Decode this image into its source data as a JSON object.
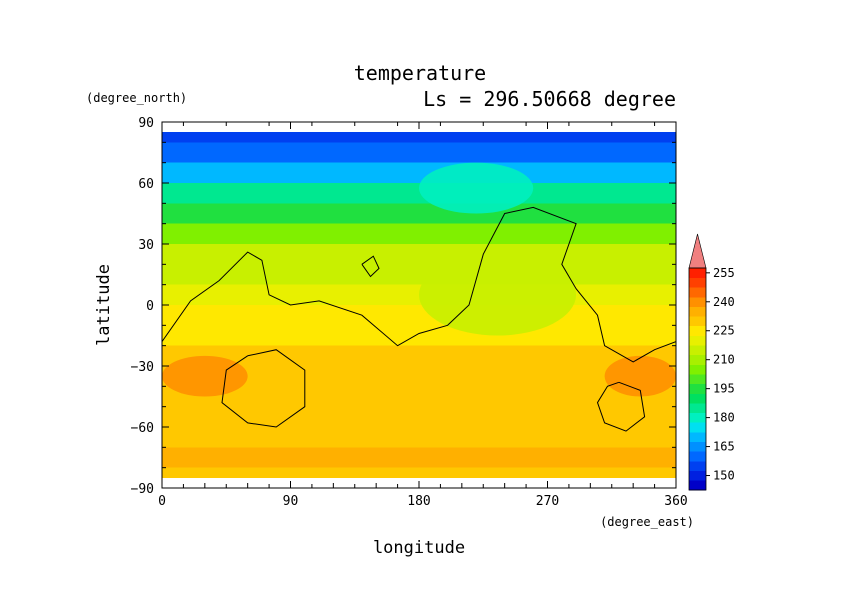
{
  "chart_data": {
    "type": "heatmap",
    "title": "temperature",
    "subtitle": "Ls = 296.50668 degree",
    "xlabel": "longitude",
    "ylabel": "latitude",
    "x_unit": "(degree_east)",
    "y_unit": "(degree_north)",
    "xlim": [
      0,
      360
    ],
    "ylim": [
      -90,
      90
    ],
    "x_ticks": [
      "0",
      "90",
      "180",
      "270",
      "360"
    ],
    "x_tick_values": [
      0,
      90,
      180,
      270,
      360
    ],
    "y_ticks": [
      "90",
      "60",
      "30",
      "0",
      "−30",
      "−60",
      "−90"
    ],
    "y_tick_values": [
      90,
      60,
      30,
      0,
      -30,
      -60,
      -90
    ],
    "colorbar": {
      "levels": [
        140,
        145,
        150,
        155,
        160,
        165,
        170,
        175,
        180,
        185,
        190,
        195,
        200,
        205,
        210,
        215,
        220,
        225,
        230,
        235,
        240,
        245,
        250,
        255,
        260
      ],
      "labels": [
        "150",
        "165",
        "180",
        "195",
        "210",
        "225",
        "240",
        "255"
      ],
      "label_values": [
        150,
        165,
        180,
        195,
        210,
        225,
        240,
        255
      ],
      "colors": [
        "#0000c8",
        "#0020e0",
        "#0040f0",
        "#0068ff",
        "#0090ff",
        "#00b8ff",
        "#00e0f0",
        "#00f0c0",
        "#00e890",
        "#00e060",
        "#20e040",
        "#50e820",
        "#80f000",
        "#a8f000",
        "#c8f000",
        "#e8f000",
        "#ffe800",
        "#ffc800",
        "#ffb000",
        "#ff9000",
        "#ff6800",
        "#ff4000",
        "#ff2000",
        "#f08080"
      ]
    },
    "field_by_latitude": [
      {
        "lat": 85,
        "temp": 150
      },
      {
        "lat": 75,
        "temp": 156
      },
      {
        "lat": 65,
        "temp": 168
      },
      {
        "lat": 55,
        "temp": 180
      },
      {
        "lat": 45,
        "temp": 192
      },
      {
        "lat": 35,
        "temp": 200
      },
      {
        "lat": 25,
        "temp": 210
      },
      {
        "lat": 15,
        "temp": 214
      },
      {
        "lat": 5,
        "temp": 218
      },
      {
        "lat": -5,
        "temp": 222
      },
      {
        "lat": -15,
        "temp": 224
      },
      {
        "lat": -25,
        "temp": 226
      },
      {
        "lat": -35,
        "temp": 228
      },
      {
        "lat": -45,
        "temp": 229
      },
      {
        "lat": -55,
        "temp": 229
      },
      {
        "lat": -65,
        "temp": 229
      },
      {
        "lat": -75,
        "temp": 230
      },
      {
        "lat": -85,
        "temp": 228
      }
    ],
    "anomalies": [
      {
        "kind": "cold-highlands",
        "lon": [
          180,
          290
        ],
        "lat": [
          -15,
          25
        ],
        "temp": 211
      },
      {
        "kind": "warm-basin",
        "lon": [
          0,
          60
        ],
        "lat": [
          -45,
          -25
        ],
        "temp": 236
      },
      {
        "kind": "warm-basin",
        "lon": [
          310,
          360
        ],
        "lat": [
          -45,
          -25
        ],
        "temp": 236
      },
      {
        "kind": "cold-plume",
        "lon": [
          180,
          260
        ],
        "lat": [
          45,
          70
        ],
        "temp": 178
      }
    ],
    "contours": [
      {
        "name": "topography-zero-line",
        "points": [
          [
            0,
            -18
          ],
          [
            20,
            2
          ],
          [
            40,
            12
          ],
          [
            60,
            26
          ],
          [
            70,
            22
          ],
          [
            75,
            5
          ],
          [
            90,
            0
          ],
          [
            110,
            2
          ],
          [
            140,
            -5
          ],
          [
            165,
            -20
          ],
          [
            180,
            -14
          ],
          [
            200,
            -10
          ],
          [
            215,
            0
          ],
          [
            225,
            25
          ],
          [
            240,
            45
          ],
          [
            260,
            48
          ],
          [
            290,
            40
          ],
          [
            280,
            20
          ],
          [
            290,
            8
          ],
          [
            305,
            -5
          ],
          [
            310,
            -20
          ],
          [
            330,
            -28
          ],
          [
            345,
            -22
          ],
          [
            360,
            -18
          ]
        ]
      },
      {
        "name": "hellas-basin-outline",
        "points": [
          [
            60,
            -25
          ],
          [
            80,
            -22
          ],
          [
            100,
            -32
          ],
          [
            100,
            -50
          ],
          [
            80,
            -60
          ],
          [
            60,
            -58
          ],
          [
            42,
            -48
          ],
          [
            45,
            -32
          ],
          [
            60,
            -25
          ]
        ]
      },
      {
        "name": "argyre-basin-outline",
        "points": [
          [
            320,
            -38
          ],
          [
            335,
            -42
          ],
          [
            338,
            -55
          ],
          [
            325,
            -62
          ],
          [
            310,
            -58
          ],
          [
            305,
            -48
          ],
          [
            312,
            -40
          ],
          [
            320,
            -38
          ]
        ]
      },
      {
        "name": "small-island-contour",
        "points": [
          [
            140,
            20
          ],
          [
            148,
            24
          ],
          [
            152,
            18
          ],
          [
            146,
            14
          ],
          [
            140,
            20
          ]
        ]
      }
    ]
  }
}
